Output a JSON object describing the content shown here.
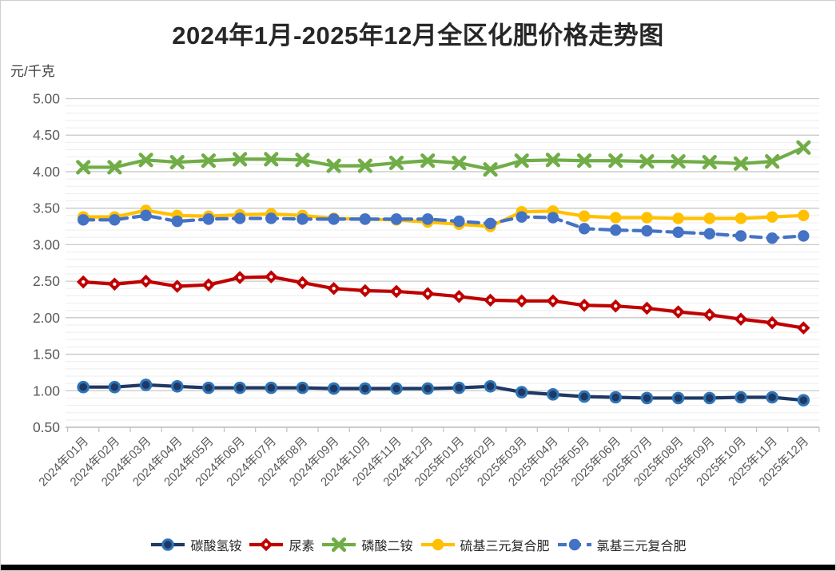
{
  "title": "2024年1月-2025年12月全区化肥价格走势图",
  "y_axis_unit": "元/千克",
  "window": {
    "bottom_bar_color": "#000000"
  },
  "chart_data": {
    "type": "line",
    "title": "2024年1月-2025年12月全区化肥价格走势图",
    "ylabel": "元/千克",
    "xlabel": "",
    "ylim": [
      0.5,
      5.0
    ],
    "ytick_step": 0.5,
    "y_minor_step": 0.1,
    "ytick_format_decimals": 2,
    "grid": true,
    "legend_position": "bottom",
    "axis_text_color": "#595959",
    "major_grid_color": "#c8c8c8",
    "minor_grid_color": "#ededed",
    "axis_line_color": "#bfbfbf",
    "categories": [
      "2024年01月",
      "2024年02月",
      "2024年03月",
      "2024年04月",
      "2024年05月",
      "2024年06月",
      "2024年07月",
      "2024年08月",
      "2024年09月",
      "2024年10月",
      "2024年11月",
      "2024年12月",
      "2025年01月",
      "2025年02月",
      "2025年03月",
      "2025年04月",
      "2025年05月",
      "2025年06月",
      "2025年07月",
      "2025年08月",
      "2025年09月",
      "2025年10月",
      "2025年11月",
      "2025年12月"
    ],
    "series": [
      {
        "name": "碳酸氢铵",
        "key": "ammonium-bicarbonate",
        "color": "#1F3864",
        "marker": "circle-ring",
        "marker_ring_color": "#2E75B6",
        "dash": null,
        "values": [
          1.05,
          1.05,
          1.08,
          1.06,
          1.04,
          1.04,
          1.04,
          1.04,
          1.03,
          1.03,
          1.03,
          1.03,
          1.04,
          1.06,
          0.98,
          0.95,
          0.92,
          0.91,
          0.9,
          0.9,
          0.9,
          0.91,
          0.91,
          0.87
        ]
      },
      {
        "name": "尿素",
        "key": "urea",
        "color": "#C00000",
        "marker": "diamond",
        "dash": null,
        "values": [
          2.49,
          2.46,
          2.5,
          2.43,
          2.45,
          2.55,
          2.56,
          2.48,
          2.4,
          2.37,
          2.36,
          2.33,
          2.29,
          2.24,
          2.23,
          2.23,
          2.17,
          2.16,
          2.13,
          2.08,
          2.04,
          1.98,
          1.93,
          1.86
        ]
      },
      {
        "name": "磷酸二铵",
        "key": "diammonium-phosphate",
        "color": "#70AD47",
        "marker": "x",
        "dash": null,
        "values": [
          4.06,
          4.06,
          4.16,
          4.13,
          4.15,
          4.17,
          4.17,
          4.16,
          4.08,
          4.08,
          4.12,
          4.15,
          4.12,
          4.03,
          4.15,
          4.16,
          4.15,
          4.15,
          4.14,
          4.14,
          4.13,
          4.11,
          4.14,
          4.33
        ]
      },
      {
        "name": "硫基三元复合肥",
        "key": "sulfur-based-compound",
        "color": "#FFC000",
        "marker": "circle",
        "dash": null,
        "values": [
          3.38,
          3.38,
          3.47,
          3.4,
          3.39,
          3.41,
          3.42,
          3.4,
          3.36,
          3.35,
          3.34,
          3.31,
          3.28,
          3.25,
          3.45,
          3.46,
          3.39,
          3.37,
          3.37,
          3.36,
          3.36,
          3.36,
          3.38,
          3.4
        ]
      },
      {
        "name": "氯基三元复合肥",
        "key": "chlorine-based-compound",
        "color": "#4472C4",
        "marker": "circle",
        "dash": "13 8",
        "values": [
          3.34,
          3.34,
          3.4,
          3.32,
          3.35,
          3.36,
          3.36,
          3.35,
          3.35,
          3.35,
          3.35,
          3.35,
          3.32,
          3.29,
          3.38,
          3.37,
          3.22,
          3.2,
          3.19,
          3.17,
          3.15,
          3.12,
          3.09,
          3.12
        ]
      }
    ]
  }
}
